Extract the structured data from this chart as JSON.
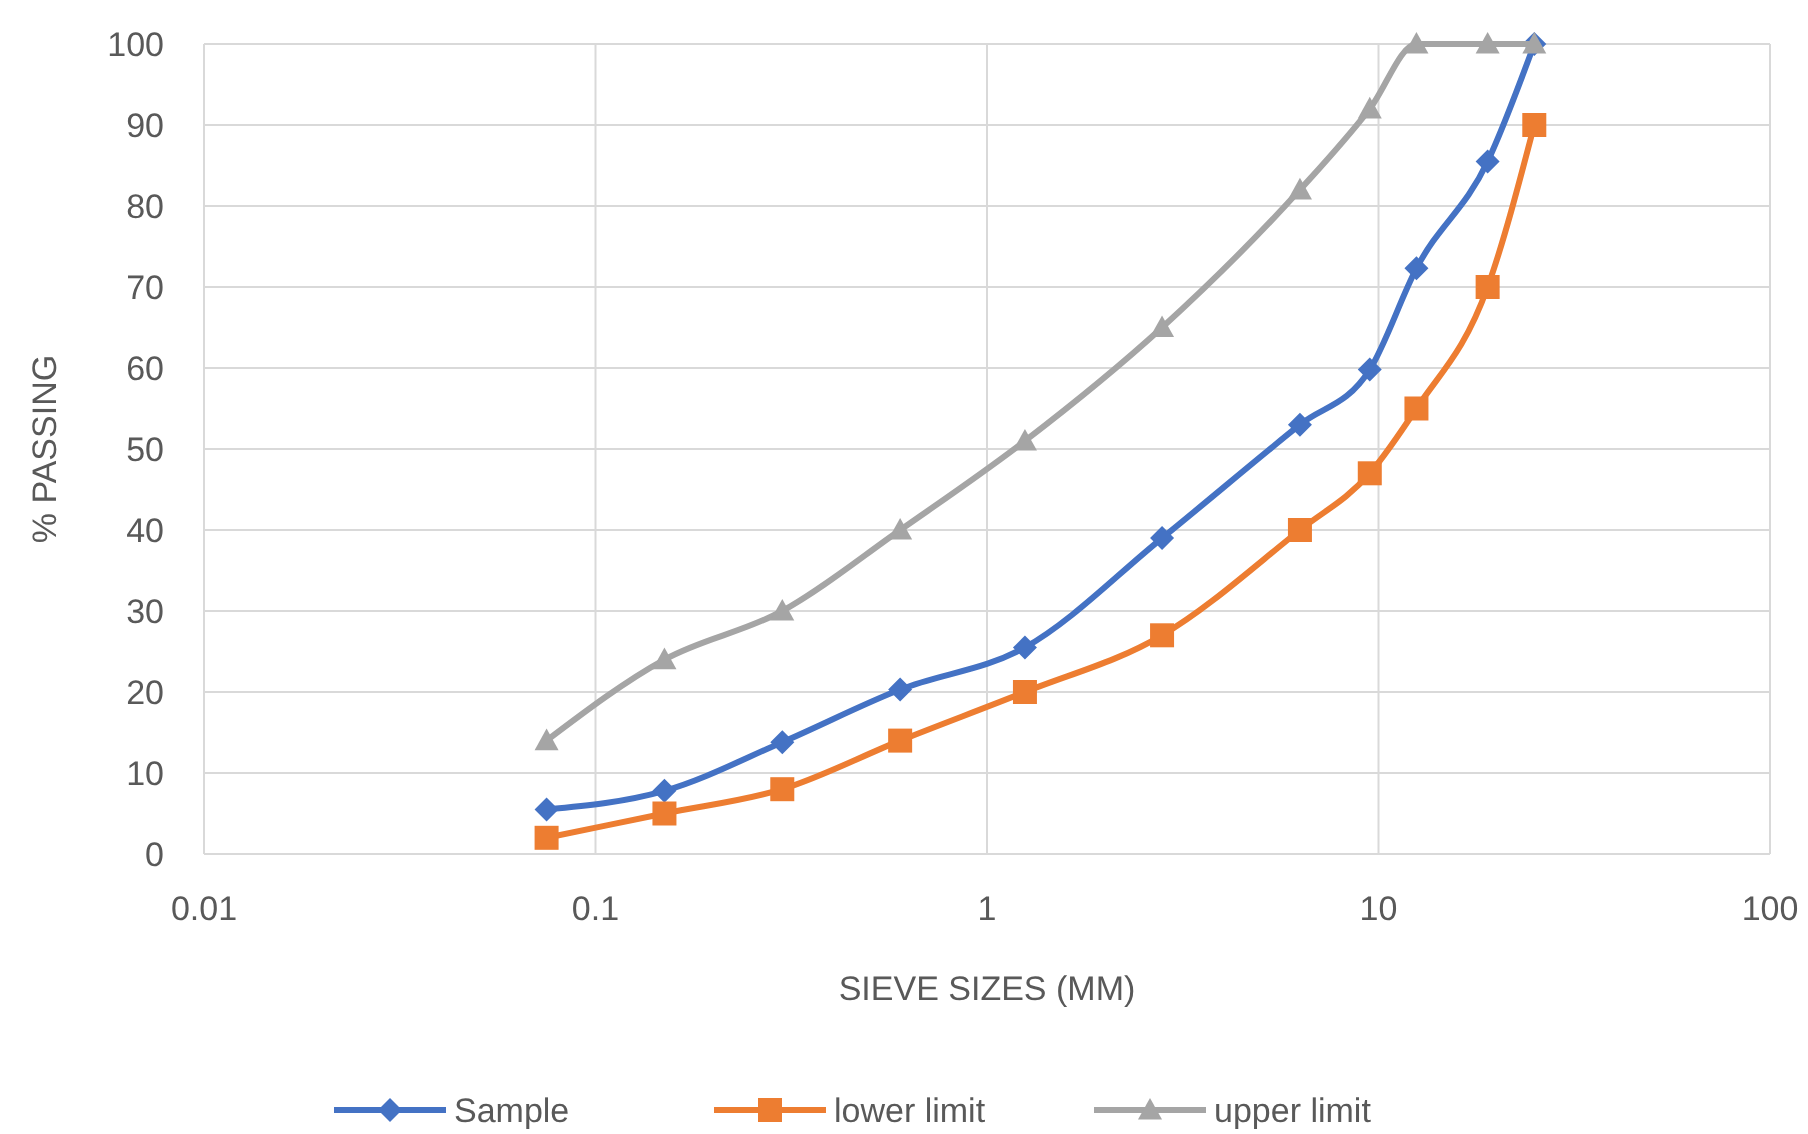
{
  "chart_data": {
    "type": "line",
    "xlabel": "SIEVE SIZES (MM)",
    "ylabel": "% PASSING",
    "log": "x",
    "x": [
      0.075,
      0.15,
      0.3,
      0.6,
      1.25,
      2.8,
      6.3,
      9.5,
      12.5,
      19,
      25
    ],
    "xlim": [
      0.01,
      100
    ],
    "xticks": [
      0.01,
      0.1,
      1,
      10,
      100
    ],
    "ylim": [
      0,
      100
    ],
    "yticks": [
      0,
      10,
      20,
      30,
      40,
      50,
      60,
      70,
      80,
      90,
      100
    ],
    "grid": true,
    "legend": "bottom",
    "series": [
      {
        "name": "Sample",
        "color": "#4472c4",
        "marker": "diamond",
        "values": [
          5.5,
          7.8,
          13.8,
          20.3,
          25.5,
          39,
          53,
          59.8,
          72.3,
          85.5,
          100
        ]
      },
      {
        "name": "lower limit",
        "color": "#ed7d31",
        "marker": "square",
        "values": [
          2,
          5,
          8,
          14,
          20,
          27,
          40,
          47,
          55,
          70,
          90
        ]
      },
      {
        "name": "upper limit",
        "color": "#a5a5a5",
        "marker": "triangle",
        "values": [
          14,
          24,
          30,
          40,
          51,
          65,
          82,
          92,
          100,
          100,
          100
        ]
      }
    ]
  }
}
